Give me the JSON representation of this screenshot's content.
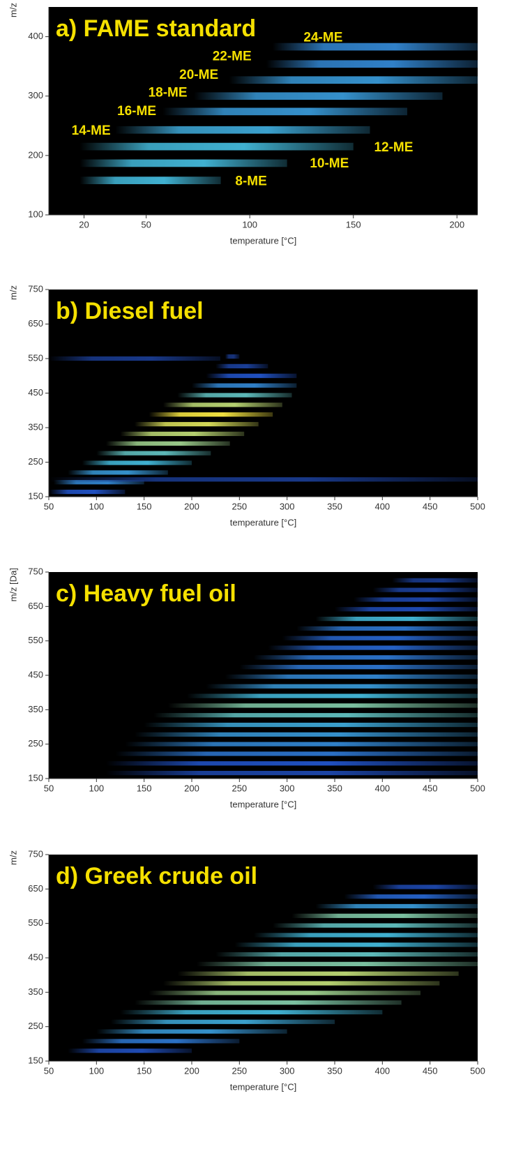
{
  "chart_data": [
    {
      "type": "heatmap",
      "title": "a) FAME standard",
      "xlabel": "temperature [°C]",
      "ylabel": "m/z",
      "xlim": [
        3,
        210
      ],
      "ylim": [
        100,
        450
      ],
      "xticks": [
        20,
        50,
        100,
        150,
        200
      ],
      "yticks": [
        100,
        200,
        300,
        400
      ],
      "streaks": {
        "mz": [
          158,
          187,
          215,
          243,
          274,
          300,
          327,
          354,
          383
        ],
        "t_start": [
          18,
          18,
          18,
          35,
          58,
          73,
          90,
          108,
          111
        ],
        "t_end": [
          86,
          118,
          150,
          158,
          176,
          193,
          210,
          210,
          210
        ],
        "intensity": [
          0.7,
          0.7,
          0.7,
          0.65,
          0.6,
          0.6,
          0.6,
          0.55,
          0.55
        ]
      },
      "labels": [
        {
          "text": "8-ME",
          "x": 93,
          "y": 156
        },
        {
          "text": "10-ME",
          "x": 129,
          "y": 186
        },
        {
          "text": "12-ME",
          "x": 160,
          "y": 213
        },
        {
          "text": "14-ME",
          "x": 14,
          "y": 241
        },
        {
          "text": "16-ME",
          "x": 36,
          "y": 274
        },
        {
          "text": "18-ME",
          "x": 51,
          "y": 305
        },
        {
          "text": "20-ME",
          "x": 66,
          "y": 335
        },
        {
          "text": "22-ME",
          "x": 82,
          "y": 366
        },
        {
          "text": "24-ME",
          "x": 126,
          "y": 398
        }
      ]
    },
    {
      "type": "heatmap",
      "title": "b) Diesel fuel",
      "xlabel": "temperature [°C]",
      "ylabel": "m/z",
      "xlim": [
        50,
        500
      ],
      "ylim": [
        150,
        750
      ],
      "xticks": [
        50,
        100,
        150,
        200,
        250,
        300,
        350,
        400,
        450,
        500
      ],
      "yticks": [
        150,
        250,
        350,
        450,
        550,
        650,
        750
      ],
      "streaks": {
        "mz": [
          164,
          192,
          220,
          248,
          276,
          304,
          332,
          360,
          388,
          416,
          444,
          472,
          500,
          528,
          556,
          200,
          550
        ],
        "t_start": [
          50,
          55,
          70,
          85,
          100,
          110,
          125,
          140,
          155,
          170,
          185,
          200,
          215,
          225,
          235,
          50,
          50
        ],
        "t_end": [
          130,
          150,
          175,
          200,
          220,
          240,
          255,
          270,
          285,
          295,
          305,
          310,
          310,
          280,
          250,
          500,
          230
        ],
        "intensity": [
          0.4,
          0.55,
          0.6,
          0.7,
          0.75,
          0.85,
          0.9,
          0.95,
          1.0,
          0.9,
          0.75,
          0.55,
          0.4,
          0.25,
          0.15,
          0.2,
          0.2
        ]
      }
    },
    {
      "type": "heatmap",
      "title": "c) Heavy fuel oil",
      "xlabel": "temperature [°C]",
      "ylabel": "m/z [Da]",
      "xlim": [
        50,
        500
      ],
      "ylim": [
        150,
        750
      ],
      "xticks": [
        50,
        100,
        150,
        200,
        250,
        300,
        350,
        400,
        450,
        500
      ],
      "yticks": [
        150,
        250,
        350,
        450,
        550,
        650,
        750
      ],
      "streaks": {
        "mz": [
          166,
          194,
          222,
          250,
          278,
          306,
          334,
          362,
          390,
          418,
          446,
          474,
          502,
          530,
          558,
          586,
          614,
          642,
          670,
          698,
          726
        ],
        "t_start": [
          110,
          110,
          120,
          130,
          140,
          150,
          160,
          175,
          195,
          215,
          235,
          250,
          265,
          280,
          295,
          310,
          330,
          350,
          370,
          390,
          410
        ],
        "t_end": [
          500,
          500,
          500,
          500,
          500,
          500,
          500,
          500,
          500,
          500,
          500,
          500,
          500,
          500,
          500,
          500,
          500,
          500,
          500,
          500,
          500
        ],
        "intensity": [
          0.3,
          0.4,
          0.5,
          0.55,
          0.6,
          0.65,
          0.75,
          0.8,
          0.7,
          0.6,
          0.55,
          0.5,
          0.5,
          0.45,
          0.45,
          0.5,
          0.7,
          0.35,
          0.3,
          0.25,
          0.2
        ]
      }
    },
    {
      "type": "heatmap",
      "title": "d) Greek crude oil",
      "xlabel": "temperature [°C]",
      "ylabel": "m/z",
      "xlim": [
        50,
        500
      ],
      "ylim": [
        150,
        750
      ],
      "xticks": [
        50,
        100,
        150,
        200,
        250,
        300,
        350,
        400,
        450,
        500
      ],
      "yticks": [
        150,
        250,
        350,
        450,
        550,
        650,
        750
      ],
      "streaks": {
        "mz": [
          180,
          208,
          236,
          264,
          292,
          320,
          348,
          376,
          404,
          432,
          460,
          488,
          516,
          544,
          572,
          600,
          628,
          656
        ],
        "t_start": [
          70,
          85,
          100,
          115,
          125,
          140,
          155,
          170,
          185,
          205,
          225,
          245,
          265,
          285,
          305,
          330,
          360,
          390
        ],
        "t_end": [
          200,
          250,
          300,
          350,
          400,
          420,
          440,
          460,
          480,
          500,
          500,
          500,
          500,
          500,
          500,
          500,
          500,
          500
        ],
        "intensity": [
          0.35,
          0.5,
          0.6,
          0.65,
          0.7,
          0.8,
          0.85,
          0.9,
          0.9,
          0.8,
          0.75,
          0.7,
          0.7,
          0.75,
          0.8,
          0.6,
          0.45,
          0.3
        ]
      }
    }
  ]
}
